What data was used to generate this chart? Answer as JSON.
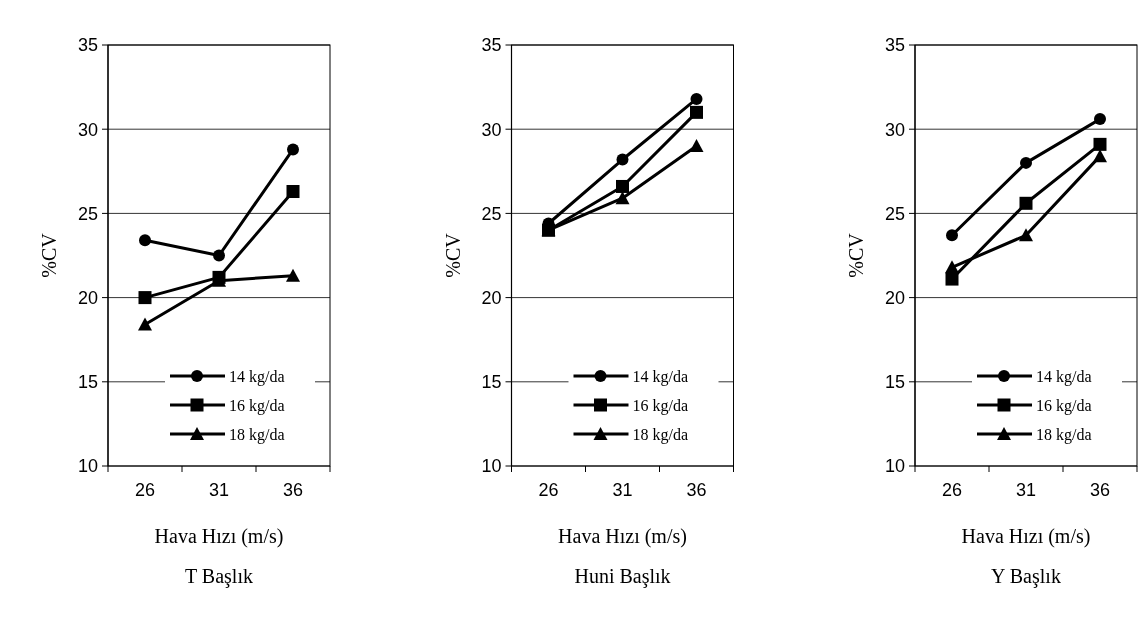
{
  "chart_data": [
    {
      "type": "line",
      "title": "T Başlık",
      "xlabel": "Hava Hızı (m/s)",
      "ylabel": "%CV",
      "categories": [
        "26",
        "31",
        "36"
      ],
      "ylim": [
        10,
        35
      ],
      "yticks": [
        10,
        15,
        20,
        25,
        30,
        35
      ],
      "grid": "y",
      "legend": "bottom right",
      "series": [
        {
          "name": "14 kg/da",
          "color": "#000000",
          "marker": "circle",
          "values": [
            23.4,
            22.5,
            28.8
          ]
        },
        {
          "name": "16 kg/da",
          "color": "#000000",
          "marker": "square",
          "values": [
            20.0,
            21.2,
            26.3
          ]
        },
        {
          "name": "18 kg/da",
          "color": "#000000",
          "marker": "triangle",
          "values": [
            18.4,
            21.0,
            21.3
          ]
        }
      ]
    },
    {
      "type": "line",
      "title": "Huni Başlık",
      "xlabel": "Hava Hızı (m/s)",
      "ylabel": "%CV",
      "categories": [
        "26",
        "31",
        "36"
      ],
      "ylim": [
        10,
        35
      ],
      "yticks": [
        10,
        15,
        20,
        25,
        30,
        35
      ],
      "grid": "y",
      "legend": "bottom right",
      "series": [
        {
          "name": "14 kg/da",
          "color": "#000000",
          "marker": "circle",
          "values": [
            24.4,
            28.2,
            31.8
          ]
        },
        {
          "name": "16 kg/da",
          "color": "#000000",
          "marker": "square",
          "values": [
            24.0,
            26.6,
            31.0
          ]
        },
        {
          "name": "18 kg/da",
          "color": "#000000",
          "marker": "triangle",
          "values": [
            24.0,
            25.9,
            29.0
          ]
        }
      ]
    },
    {
      "type": "line",
      "title": "Y Başlık",
      "xlabel": "Hava Hızı (m/s)",
      "ylabel": "%CV",
      "categories": [
        "26",
        "31",
        "36"
      ],
      "ylim": [
        10,
        35
      ],
      "yticks": [
        10,
        15,
        20,
        25,
        30,
        35
      ],
      "grid": "y",
      "legend": "bottom right",
      "series": [
        {
          "name": "14 kg/da",
          "color": "#000000",
          "marker": "circle",
          "values": [
            23.7,
            28.0,
            30.6
          ]
        },
        {
          "name": "16 kg/da",
          "color": "#000000",
          "marker": "square",
          "values": [
            21.1,
            25.6,
            29.1
          ]
        },
        {
          "name": "18 kg/da",
          "color": "#000000",
          "marker": "triangle",
          "values": [
            21.8,
            23.7,
            28.4
          ]
        }
      ]
    }
  ]
}
